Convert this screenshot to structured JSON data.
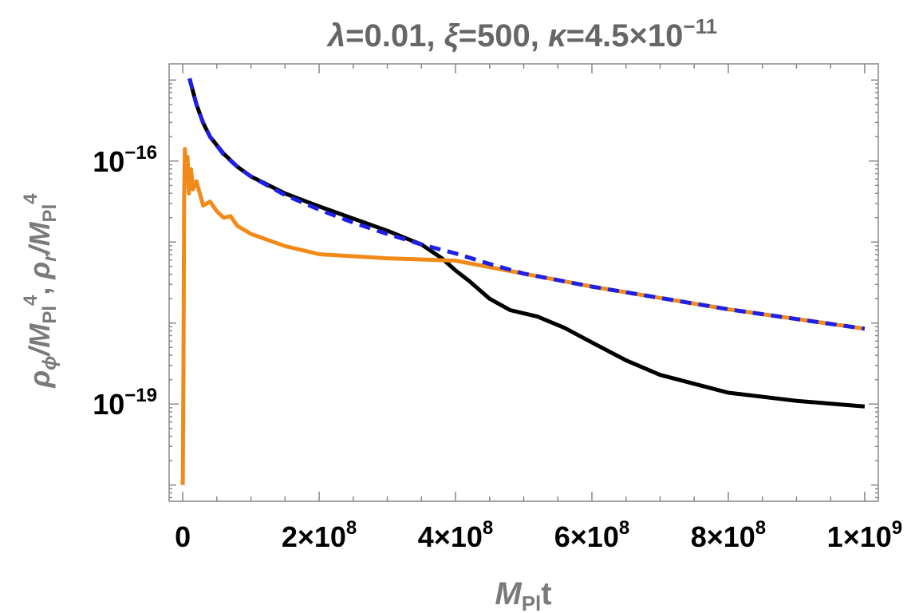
{
  "chart_data": {
    "type": "line",
    "title_parts": [
      "λ",
      "=0.01, ",
      "ξ",
      "=500, ",
      "κ",
      "=4.5×10",
      "−11"
    ],
    "xlabel_parts": [
      "M",
      "Pl",
      "t"
    ],
    "ylabel_parts": [
      "ρ",
      "ϕ",
      "/M",
      "Pl",
      "4",
      ", ",
      "ρ",
      "r",
      "/M",
      "Pl",
      "4"
    ],
    "x_scale": "linear",
    "y_scale": "log",
    "xlim": [
      -20000000,
      1020000000
    ],
    "ylim_log10": [
      -20.2,
      -14.8
    ],
    "x_ticks": [
      {
        "value": 0,
        "base": "0",
        "exp": ""
      },
      {
        "value": 200000000,
        "base": "2×10",
        "exp": "8"
      },
      {
        "value": 400000000,
        "base": "4×10",
        "exp": "8"
      },
      {
        "value": 600000000,
        "base": "6×10",
        "exp": "8"
      },
      {
        "value": 800000000,
        "base": "8×10",
        "exp": "8"
      },
      {
        "value": 1000000000,
        "base": "1×10",
        "exp": "9"
      }
    ],
    "y_ticks": [
      {
        "log10": -16,
        "base": "10",
        "exp": "−16"
      },
      {
        "log10": -19,
        "base": "10",
        "exp": "−19"
      }
    ],
    "grid": false,
    "series": [
      {
        "color": "#000000",
        "dash": "solid",
        "x": [
          10000000,
          20000000,
          30000000,
          40000000,
          60000000,
          80000000,
          100000000,
          150000000,
          200000000,
          250000000,
          300000000,
          350000000,
          380000000,
          400000000,
          420000000,
          450000000,
          480000000,
          500000000,
          520000000,
          560000000,
          600000000,
          650000000,
          700000000,
          800000000,
          900000000,
          1000000000
        ],
        "log10_y": [
          -14.98,
          -15.3,
          -15.53,
          -15.7,
          -15.91,
          -16.07,
          -16.19,
          -16.4,
          -16.56,
          -16.71,
          -16.86,
          -17.03,
          -17.2,
          -17.35,
          -17.48,
          -17.7,
          -17.84,
          -17.88,
          -17.92,
          -18.06,
          -18.24,
          -18.46,
          -18.64,
          -18.86,
          -18.96,
          -19.03
        ]
      },
      {
        "color": "#f28a1a",
        "dash": "solid",
        "x": [
          0,
          1000000,
          2000000,
          3000000,
          5000000,
          7000000,
          9000000,
          12000000,
          15000000,
          20000000,
          25000000,
          30000000,
          40000000,
          50000000,
          60000000,
          70000000,
          80000000,
          100000000,
          150000000,
          200000000,
          300000000,
          400000000,
          500000000,
          600000000,
          700000000,
          800000000,
          900000000,
          1000000000
        ],
        "log10_y": [
          -20.0,
          -18.5,
          -16.5,
          -15.85,
          -16.1,
          -15.95,
          -16.4,
          -16.1,
          -16.35,
          -16.25,
          -16.4,
          -16.55,
          -16.5,
          -16.62,
          -16.7,
          -16.68,
          -16.8,
          -16.9,
          -17.05,
          -17.15,
          -17.2,
          -17.23,
          -17.39,
          -17.55,
          -17.69,
          -17.83,
          -17.95,
          -18.07
        ]
      },
      {
        "color": "#1f1fe6",
        "dash": "dashed",
        "x": [
          10000000,
          20000000,
          30000000,
          40000000,
          60000000,
          80000000,
          100000000,
          150000000,
          200000000,
          250000000,
          300000000,
          350000000,
          400000000,
          450000000,
          500000000,
          600000000,
          700000000,
          800000000,
          900000000,
          1000000000
        ],
        "log10_y": [
          -14.98,
          -15.3,
          -15.53,
          -15.7,
          -15.92,
          -16.07,
          -16.19,
          -16.42,
          -16.6,
          -16.76,
          -16.9,
          -17.03,
          -17.14,
          -17.27,
          -17.39,
          -17.55,
          -17.69,
          -17.83,
          -17.95,
          -18.07
        ]
      }
    ]
  }
}
